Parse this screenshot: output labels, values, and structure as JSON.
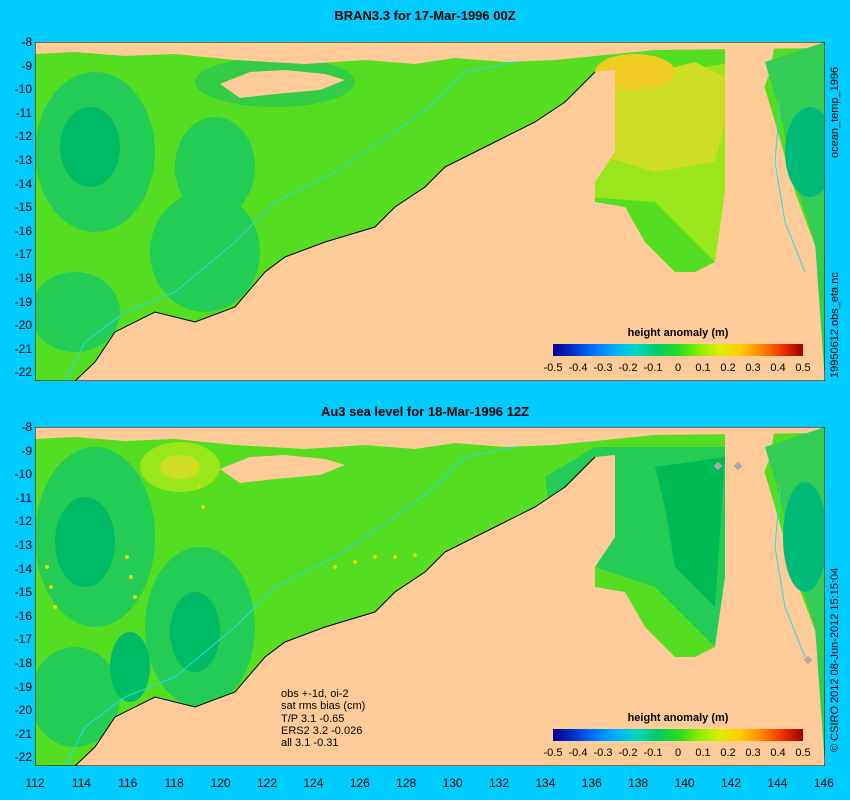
{
  "top": {
    "title": "BRAN3.3 for 17-Mar-1996 00Z",
    "side_label_1": "ocean_temp_1996",
    "side_label_2": "19950612.obs_eta.nc",
    "legend_title": "height anomaly (m)"
  },
  "bottom": {
    "title": "Au3 sea level  for 18-Mar-1996 12Z",
    "side_label": "© CSIRO 2012  08-Jun-2012 15:15:04",
    "legend_title": "height anomaly (m)",
    "stats": [
      "obs +-1d, oi-2",
      "sat rms bias (cm)",
      "T/P  3.1 -0.65",
      "ERS2 3.2 -0.026",
      "all 3.1 -0.31"
    ]
  },
  "y_ticks": [
    "-8",
    "-9",
    "-10",
    "-11",
    "-12",
    "-13",
    "-14",
    "-15",
    "-16",
    "-17",
    "-18",
    "-19",
    "-20",
    "-21",
    "-22"
  ],
  "x_ticks": [
    "112",
    "114",
    "116",
    "118",
    "120",
    "122",
    "124",
    "126",
    "128",
    "130",
    "132",
    "134",
    "136",
    "138",
    "140",
    "142",
    "144",
    "146"
  ],
  "colorbar_ticks": [
    "-0.5",
    "-0.4",
    "-0.3",
    "-0.2",
    "-0.1",
    "0",
    "0.1",
    "0.2",
    "0.3",
    "0.4",
    "0.5"
  ],
  "colors": {
    "background": "#00ccff",
    "land": "#ffcc99",
    "sea_green": "#22cc44",
    "anomaly_high": "#dddd00"
  }
}
